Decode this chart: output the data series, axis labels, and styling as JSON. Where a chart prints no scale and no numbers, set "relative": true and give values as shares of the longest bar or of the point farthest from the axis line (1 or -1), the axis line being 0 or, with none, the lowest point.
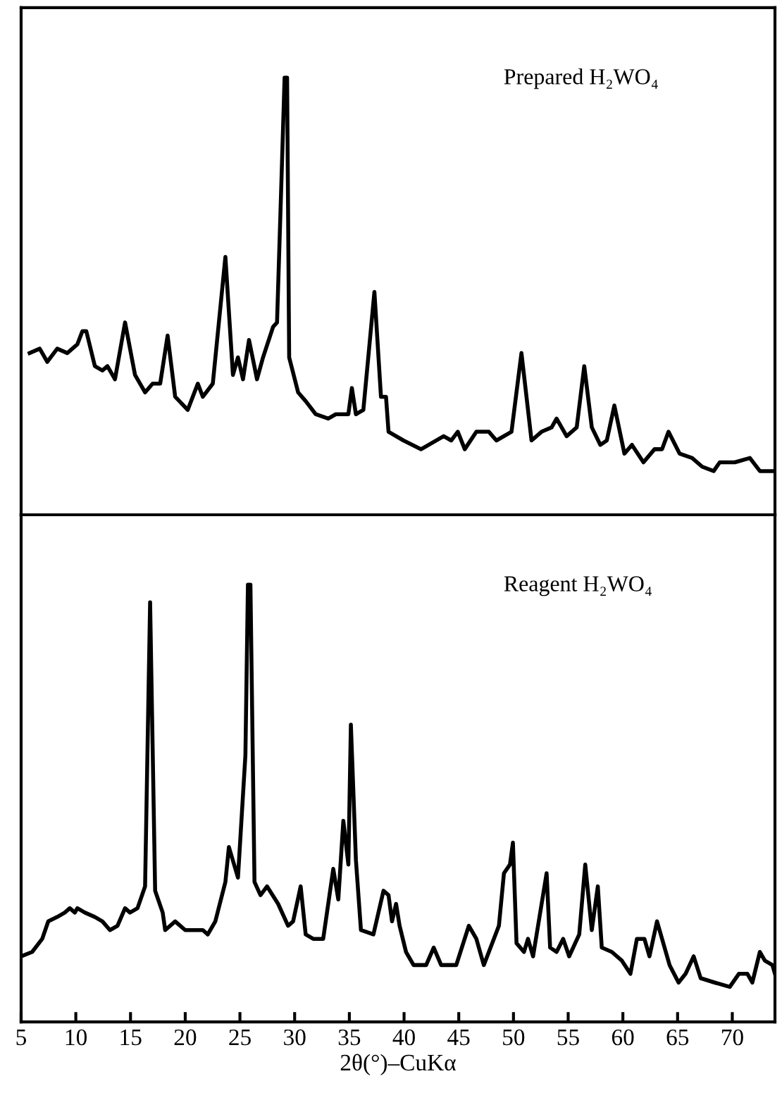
{
  "chart_data": [
    {
      "type": "line",
      "relative": true,
      "xlim": [
        5,
        73.9
      ],
      "tick_labels": false,
      "line_style": "solid",
      "marker": "none",
      "series": [
        {
          "name": "Prepared H₂WO₄",
          "color": "#000000",
          "x": [
            5.78,
            6.7,
            7.39,
            8.3,
            9.22,
            10.14,
            10.6,
            10.96,
            11.74,
            12.43,
            12.89,
            13.58,
            14.5,
            15.41,
            16.33,
            17.02,
            17.71,
            18.39,
            19.08,
            20.23,
            21.15,
            21.61,
            22.52,
            23.67,
            24.36,
            24.82,
            25.28,
            25.83,
            26.56,
            27.11,
            28.03,
            28.39,
            28.85,
            29.08,
            29.31,
            29.5,
            30.32,
            31.01,
            31.93,
            33.07,
            33.76,
            34.91,
            35.23,
            35.6,
            36.28,
            37.29,
            37.89,
            38.35,
            38.58,
            39.95,
            41.56,
            43.62,
            44.31,
            44.91,
            45.55,
            46.61,
            47.75,
            48.44,
            49.82,
            50.73,
            51.65,
            52.57,
            53.49,
            53.94,
            54.86,
            55.78,
            56.47,
            57.16,
            57.94,
            58.53,
            59.22,
            60.14,
            60.83,
            61.88,
            62.89,
            63.58,
            64.17,
            65.18,
            66.33,
            67.25,
            68.3,
            68.85,
            70.23,
            71.61,
            72.52,
            73.9
          ],
          "values": [
            0.37,
            0.38,
            0.35,
            0.38,
            0.37,
            0.39,
            0.42,
            0.42,
            0.34,
            0.33,
            0.34,
            0.31,
            0.44,
            0.32,
            0.28,
            0.3,
            0.3,
            0.41,
            0.27,
            0.24,
            0.3,
            0.27,
            0.3,
            0.59,
            0.32,
            0.36,
            0.31,
            0.4,
            0.31,
            0.36,
            0.43,
            0.44,
            0.81,
            1.0,
            1.0,
            0.36,
            0.28,
            0.26,
            0.23,
            0.22,
            0.23,
            0.23,
            0.29,
            0.23,
            0.24,
            0.51,
            0.27,
            0.27,
            0.19,
            0.17,
            0.15,
            0.18,
            0.17,
            0.19,
            0.15,
            0.19,
            0.19,
            0.17,
            0.19,
            0.37,
            0.17,
            0.19,
            0.2,
            0.22,
            0.18,
            0.2,
            0.34,
            0.2,
            0.16,
            0.17,
            0.25,
            0.14,
            0.16,
            0.12,
            0.15,
            0.15,
            0.19,
            0.14,
            0.13,
            0.11,
            0.1,
            0.12,
            0.12,
            0.13,
            0.1,
            0.1
          ]
        }
      ]
    },
    {
      "type": "line",
      "relative": true,
      "xlim": [
        5,
        73.9
      ],
      "xticks": [
        5,
        10,
        15,
        20,
        25,
        30,
        35,
        40,
        45,
        50,
        55,
        60,
        65,
        70
      ],
      "tick_labels": "x",
      "xlabel": "2θ(°)–CuKα",
      "line_style": "solid",
      "marker": "none",
      "series": [
        {
          "name": "Reagent H₂WO₄",
          "color": "#000000",
          "x": [
            5.0,
            6.01,
            6.93,
            7.48,
            8.3,
            8.99,
            9.45,
            9.91,
            10.14,
            10.83,
            11.74,
            12.43,
            13.12,
            13.81,
            14.5,
            14.95,
            15.64,
            16.33,
            16.79,
            17.25,
            17.94,
            18.17,
            19.08,
            20.0,
            20.92,
            21.61,
            22.06,
            22.75,
            23.67,
            23.99,
            24.82,
            25.5,
            25.73,
            25.96,
            26.33,
            26.88,
            27.48,
            28.49,
            29.4,
            29.86,
            30.55,
            31.01,
            31.7,
            32.61,
            33.53,
            33.99,
            34.45,
            34.91,
            35.14,
            35.6,
            36.06,
            37.2,
            38.12,
            38.58,
            38.9,
            39.27,
            39.59,
            40.18,
            40.87,
            42.02,
            42.71,
            43.39,
            44.77,
            45.92,
            46.61,
            47.29,
            48.67,
            49.13,
            49.68,
            49.95,
            50.28,
            50.96,
            51.33,
            51.79,
            53.03,
            53.35,
            53.94,
            54.54,
            55.09,
            56.01,
            56.56,
            57.16,
            57.71,
            58.07,
            58.99,
            59.91,
            60.69,
            61.28,
            61.97,
            62.43,
            63.12,
            64.27,
            65.09,
            65.73,
            66.47,
            67.11,
            68.39,
            69.77,
            70.6,
            71.38,
            71.83,
            72.52,
            72.98,
            73.67,
            73.9
          ],
          "values": [
            0.15,
            0.16,
            0.19,
            0.23,
            0.24,
            0.25,
            0.26,
            0.25,
            0.26,
            0.25,
            0.24,
            0.23,
            0.21,
            0.22,
            0.26,
            0.25,
            0.26,
            0.31,
            0.96,
            0.3,
            0.25,
            0.21,
            0.23,
            0.21,
            0.21,
            0.21,
            0.2,
            0.23,
            0.32,
            0.4,
            0.33,
            0.61,
            1.0,
            1.0,
            0.32,
            0.29,
            0.31,
            0.27,
            0.22,
            0.23,
            0.31,
            0.2,
            0.19,
            0.19,
            0.35,
            0.28,
            0.46,
            0.36,
            0.68,
            0.37,
            0.21,
            0.2,
            0.3,
            0.29,
            0.23,
            0.27,
            0.22,
            0.16,
            0.13,
            0.13,
            0.17,
            0.13,
            0.13,
            0.22,
            0.19,
            0.13,
            0.22,
            0.34,
            0.36,
            0.41,
            0.18,
            0.16,
            0.19,
            0.15,
            0.34,
            0.17,
            0.16,
            0.19,
            0.15,
            0.2,
            0.36,
            0.21,
            0.31,
            0.17,
            0.16,
            0.14,
            0.11,
            0.19,
            0.19,
            0.15,
            0.23,
            0.13,
            0.09,
            0.11,
            0.15,
            0.1,
            0.09,
            0.08,
            0.11,
            0.11,
            0.09,
            0.16,
            0.14,
            0.13,
            0.11
          ]
        }
      ]
    }
  ]
}
